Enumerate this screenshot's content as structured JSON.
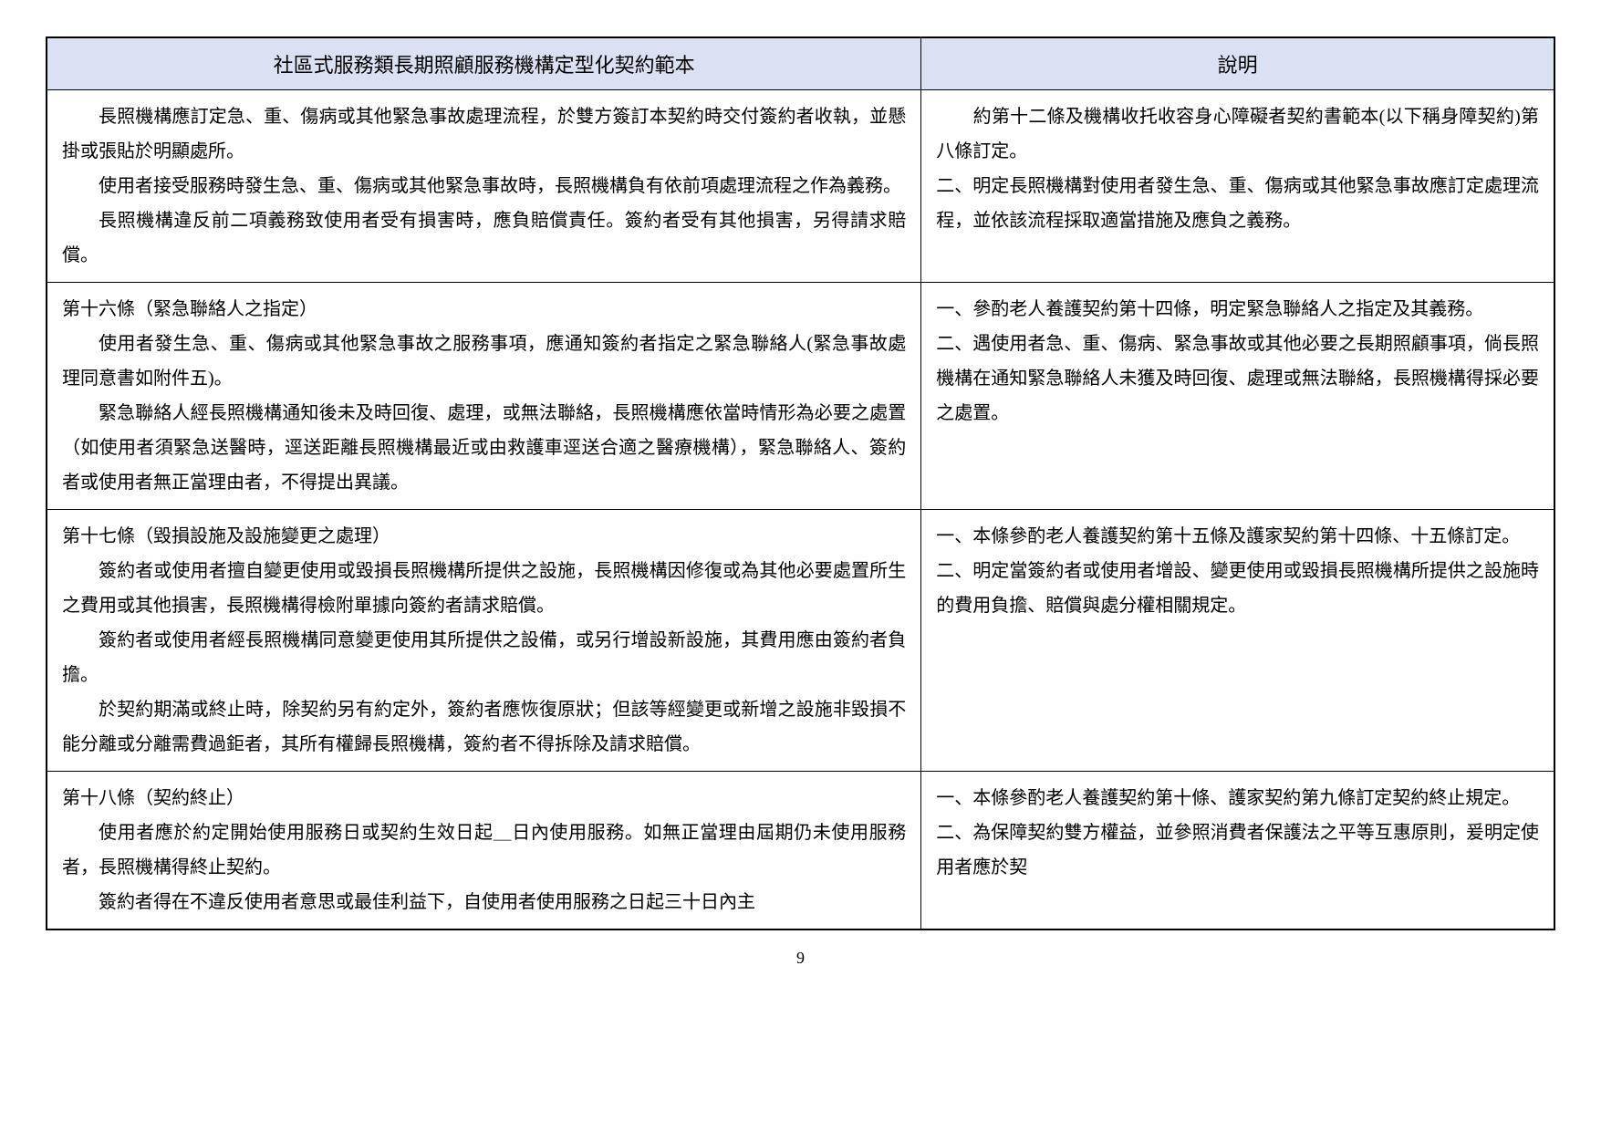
{
  "headers": {
    "left": "社區式服務類長期照顧服務機構定型化契約範本",
    "right": "說明"
  },
  "rows": [
    {
      "left": [
        {
          "text": "長照機構應訂定急、重、傷病或其他緊急事故處理流程，於雙方簽訂本契約時交付簽約者收執，並懸掛或張貼於明顯處所。",
          "indent": true
        },
        {
          "text": "使用者接受服務時發生急、重、傷病或其他緊急事故時，長照機構負有依前項處理流程之作為義務。",
          "indent": true
        },
        {
          "text": "長照機構違反前二項義務致使用者受有損害時，應負賠償責任。簽約者受有其他損害，另得請求賠償。",
          "indent": true
        }
      ],
      "right": [
        {
          "text": "　　約第十二條及機構收托收容身心障礙者契約書範本(以下稱身障契約)第八條訂定。",
          "indent": false
        },
        {
          "text": "二、明定長照機構對使用者發生急、重、傷病或其他緊急事故應訂定處理流程，並依該流程採取適當措施及應負之義務。",
          "indent": false
        }
      ]
    },
    {
      "left": [
        {
          "text": "第十六條（緊急聯絡人之指定）",
          "indent": false
        },
        {
          "text": "使用者發生急、重、傷病或其他緊急事故之服務事項，應通知簽約者指定之緊急聯絡人(緊急事故處理同意書如附件五)。",
          "indent": true
        },
        {
          "text": "緊急聯絡人經長照機構通知後未及時回復、處理，或無法聯絡，長照機構應依當時情形為必要之處置（如使用者須緊急送醫時，逕送距離長照機構最近或由救護車逕送合適之醫療機構），緊急聯絡人、簽約者或使用者無正當理由者，不得提出異議。",
          "indent": true
        }
      ],
      "right": [
        {
          "text": "一、參酌老人養護契約第十四條，明定緊急聯絡人之指定及其義務。",
          "indent": false
        },
        {
          "text": "二、遇使用者急、重、傷病、緊急事故或其他必要之長期照顧事項，倘長照機構在通知緊急聯絡人未獲及時回復、處理或無法聯絡，長照機構得採必要之處置。",
          "indent": false
        }
      ]
    },
    {
      "left": [
        {
          "text": "第十七條（毀損設施及設施變更之處理）",
          "indent": false
        },
        {
          "text": "簽約者或使用者擅自變更使用或毀損長照機構所提供之設施，長照機構因修復或為其他必要處置所生之費用或其他損害，長照機構得檢附單據向簽約者請求賠償。",
          "indent": true
        },
        {
          "text": "簽約者或使用者經長照機構同意變更使用其所提供之設備，或另行增設新設施，其費用應由簽約者負擔。",
          "indent": true
        },
        {
          "text": "於契約期滿或終止時，除契約另有約定外，簽約者應恢復原狀；但該等經變更或新增之設施非毀損不能分離或分離需費過鉅者，其所有權歸長照機構，簽約者不得拆除及請求賠償。",
          "indent": true
        }
      ],
      "right": [
        {
          "text": "一、本條參酌老人養護契約第十五條及護家契約第十四條、十五條訂定。",
          "indent": false
        },
        {
          "text": "二、明定當簽約者或使用者增設、變更使用或毀損長照機構所提供之設施時的費用負擔、賠償與處分權相關規定。",
          "indent": false
        }
      ]
    },
    {
      "left": [
        {
          "text": "第十八條（契約終止）",
          "indent": false
        },
        {
          "text": "使用者應於約定開始使用服務日或契約生效日起＿日內使用服務。如無正當理由屆期仍未使用服務者，長照機構得終止契約。",
          "indent": true
        },
        {
          "text": "簽約者得在不違反使用者意思或最佳利益下，自使用者使用服務之日起三十日內主",
          "indent": true
        }
      ],
      "right": [
        {
          "text": "一、本條參酌老人養護契約第十條、護家契約第九條訂定契約終止規定。",
          "indent": false
        },
        {
          "text": "二、為保障契約雙方權益，並參照消費者保護法之平等互惠原則，爰明定使用者應於契",
          "indent": false
        }
      ]
    }
  ],
  "pageNumber": "9"
}
